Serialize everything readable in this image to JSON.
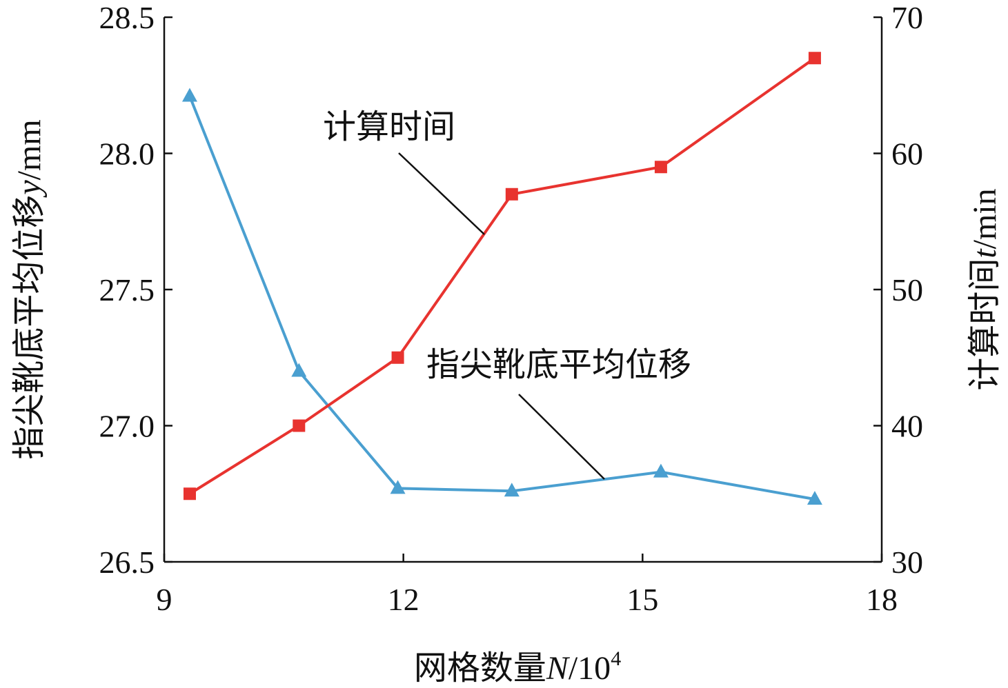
{
  "chart_data": {
    "type": "line",
    "title": "",
    "xlabel": "网格数量N/10^4",
    "xlabel_parts": {
      "main": "网格数量",
      "var": "N",
      "unit": "/10",
      "sup": "4"
    },
    "ylabel_left": "指尖靴底平均位移y/mm",
    "ylabel_left_parts": {
      "main": "指尖靴底平均位移",
      "var": "y",
      "unit": "/mm"
    },
    "ylabel_right": "计算时间t/min",
    "ylabel_right_parts": {
      "main": "计算时间",
      "var": "t",
      "unit": "/min"
    },
    "xlim": [
      9,
      18
    ],
    "ylim_left": [
      26.5,
      28.5
    ],
    "ylim_right": [
      30,
      70
    ],
    "x_ticks": [
      "9",
      "12",
      "15",
      "18"
    ],
    "y_left_ticks": [
      "26.5",
      "27.0",
      "27.5",
      "28.0",
      "28.5"
    ],
    "y_right_ticks": [
      "30",
      "40",
      "50",
      "60",
      "70"
    ],
    "grid": false,
    "series": [
      {
        "name": "指尖靴底平均位移",
        "axis": "left",
        "color": "#4a9fd0",
        "marker": "triangle",
        "x": [
          9.32,
          10.69,
          11.93,
          13.36,
          15.23,
          17.16
        ],
        "values": [
          28.21,
          27.2,
          26.77,
          26.76,
          26.83,
          26.73
        ]
      },
      {
        "name": "计算时间",
        "axis": "right",
        "color": "#e8332f",
        "marker": "square",
        "x": [
          9.32,
          10.69,
          11.93,
          13.36,
          15.23,
          17.16
        ],
        "values": [
          35,
          40,
          45,
          57,
          59,
          67
        ]
      }
    ],
    "annotations": [
      "计算时间",
      "指尖靴底平均位移"
    ]
  }
}
